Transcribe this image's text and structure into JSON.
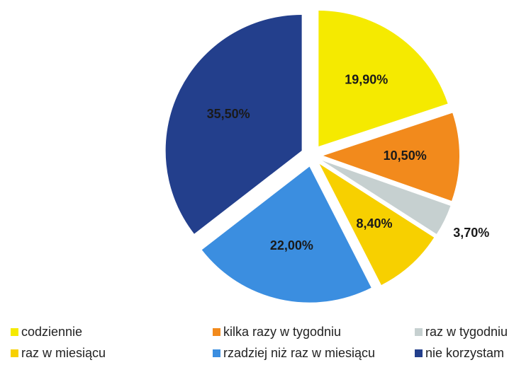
{
  "chart_data": {
    "type": "pie",
    "categories": [
      "codziennie",
      "kilka razy w tygodniu",
      "raz w tygodniu",
      "raz w miesiącu",
      "rzadziej niż raz w miesiącu",
      "nie korzystam"
    ],
    "values": [
      19.9,
      10.5,
      3.7,
      8.4,
      22.0,
      35.5
    ],
    "value_labels": [
      "19,90%",
      "10,50%",
      "3,70%",
      "8,40%",
      "22,00%",
      "35,50%"
    ],
    "colors": [
      "#f5ea00",
      "#f28a1c",
      "#c6d0d0",
      "#f7d000",
      "#3b8ee0",
      "#233f8c"
    ],
    "legend": "bottom"
  }
}
